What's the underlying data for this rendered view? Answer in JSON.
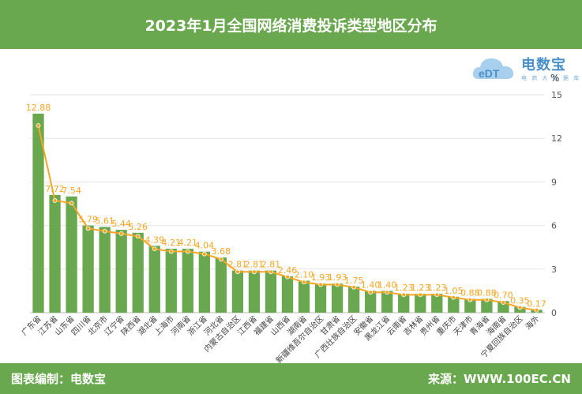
{
  "title": "2023年1月全国网络消费投诉类型地区分布",
  "footer": {
    "left": "图表编制：电数宝",
    "right": "来源：WWW.100EC.CN"
  },
  "logo": {
    "brand": "电数宝",
    "sub": "电 商 大 数 据 库"
  },
  "colors": {
    "bar": "#6aa84f",
    "line": "#f5a623",
    "header": "#6aa84f",
    "label": "#f5a623"
  },
  "chart_data": {
    "type": "bar",
    "title": "2023年1月全国网络消费投诉类型地区分布",
    "ylabel": "%",
    "ylim": [
      0,
      15
    ],
    "yticks": [
      0,
      3,
      6,
      9,
      12,
      15
    ],
    "axis_position": "right",
    "grid": true,
    "categories": [
      "广东省",
      "江苏省",
      "山东省",
      "四川省",
      "北京市",
      "辽宁省",
      "陕西省",
      "湖北省",
      "上海市",
      "河南省",
      "浙江省",
      "河北省",
      "内蒙古自治区",
      "江西省",
      "福建省",
      "山西省",
      "湖南省",
      "新疆维吾尔自治区",
      "甘肃省",
      "广西壮族自治区",
      "安徽省",
      "黑龙江省",
      "云南省",
      "吉林省",
      "贵州省",
      "重庆市",
      "天津市",
      "青海省",
      "海南省",
      "宁夏回族自治区",
      "海外"
    ],
    "series": [
      {
        "type": "bar",
        "values": [
          13.7,
          8.1,
          8.0,
          6.0,
          5.9,
          5.7,
          5.5,
          4.6,
          4.4,
          4.4,
          4.2,
          3.8,
          2.9,
          2.9,
          2.9,
          2.5,
          2.2,
          2.0,
          2.0,
          1.8,
          1.5,
          1.5,
          1.3,
          1.3,
          1.3,
          1.1,
          0.95,
          0.95,
          0.8,
          0.4,
          0.2
        ]
      },
      {
        "type": "line",
        "values": [
          12.88,
          7.72,
          7.54,
          5.79,
          5.61,
          5.44,
          5.26,
          4.39,
          4.21,
          4.21,
          4.04,
          3.68,
          2.81,
          2.81,
          2.81,
          2.46,
          2.1,
          1.93,
          1.93,
          1.75,
          1.4,
          1.4,
          1.23,
          1.23,
          1.23,
          1.05,
          0.88,
          0.88,
          0.7,
          0.35,
          0.17
        ],
        "labels": [
          "12.88",
          "7.72",
          "7.54",
          "5.79",
          "5.61",
          "5.44",
          "5.26",
          "4.39",
          "4.21",
          "4.21",
          "4.04",
          "3.68",
          "2.81",
          "2.81",
          "2.81",
          "2.46",
          "2.10",
          "1.93",
          "1.93",
          "1.75",
          "1.40",
          "1.40",
          "1.23",
          "1.23",
          "1.23",
          "1.05",
          "0.88",
          "0.88",
          "0.70",
          "0.35",
          "0.17"
        ]
      }
    ]
  }
}
